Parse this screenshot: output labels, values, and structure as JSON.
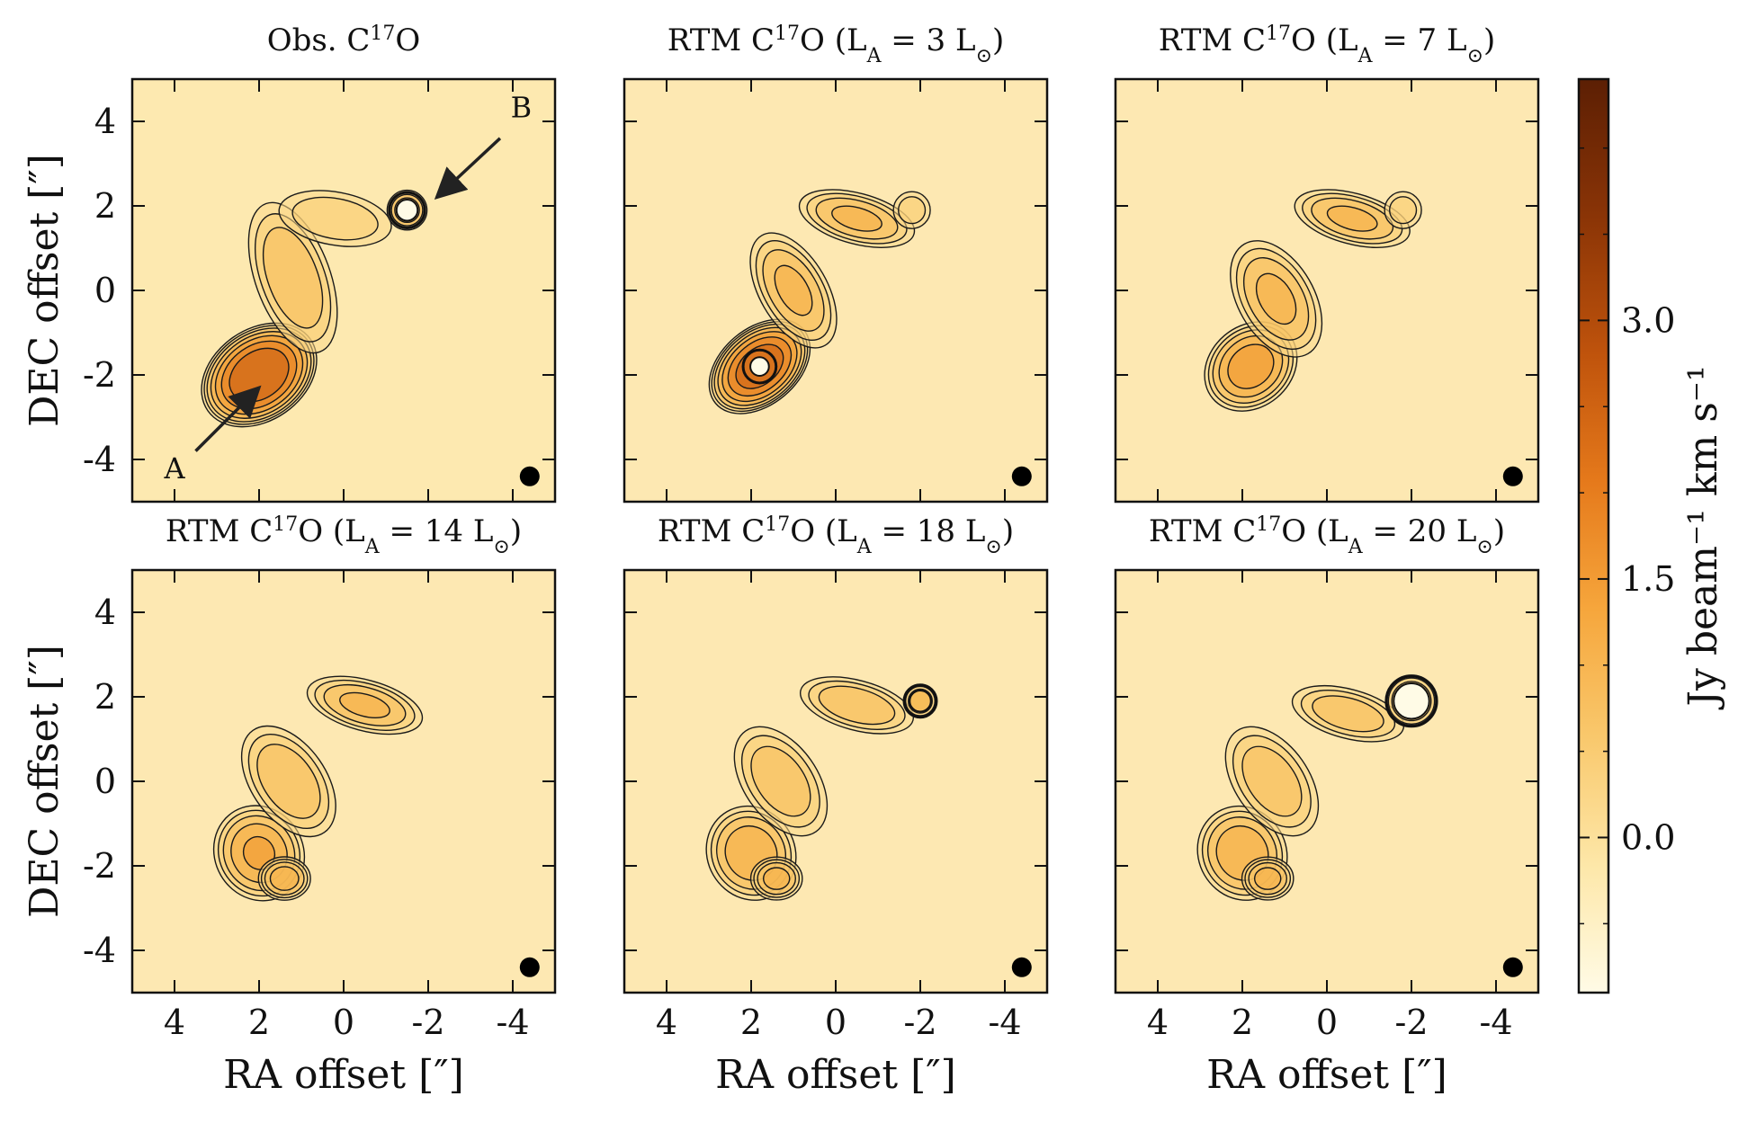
{
  "chart_data": {
    "type": "heatmap",
    "panels": [
      {
        "id": "obs",
        "title_pre": "Obs. C",
        "title_sup": "17",
        "title_post": "O",
        "annotations": [
          "A",
          "B"
        ]
      },
      {
        "id": "rtm3",
        "title_pre": "RTM C",
        "title_sup": "17",
        "title_post": "O (L",
        "la_sub": "A",
        "la_value": "= 3 L",
        "la_close": ")"
      },
      {
        "id": "rtm7",
        "title_pre": "RTM C",
        "title_sup": "17",
        "title_post": "O (L",
        "la_sub": "A",
        "la_value": "= 7 L",
        "la_close": ")"
      },
      {
        "id": "rtm14",
        "title_pre": "RTM C",
        "title_sup": "17",
        "title_post": "O (L",
        "la_sub": "A",
        "la_value": "= 14 L",
        "la_close": ")"
      },
      {
        "id": "rtm18",
        "title_pre": "RTM C",
        "title_sup": "17",
        "title_post": "O (L",
        "la_sub": "A",
        "la_value": "= 18 L",
        "la_close": ")"
      },
      {
        "id": "rtm20",
        "title_pre": "RTM C",
        "title_sup": "17",
        "title_post": "O (L",
        "la_sub": "A",
        "la_value": "= 20 L",
        "la_close": ")"
      }
    ],
    "x_label": "RA offset [″]",
    "y_label": "DEC offset [″]",
    "x_ticks": [
      "4",
      "2",
      "0",
      "-2",
      "-4"
    ],
    "y_ticks": [
      "4",
      "2",
      "0",
      "-2",
      "-4"
    ],
    "x_range": [
      5,
      -5
    ],
    "y_range": [
      -5,
      5
    ],
    "colorbar": {
      "label": "Jy beam⁻¹ km s⁻¹",
      "ticks": [
        "0.0",
        "1.5",
        "3.0"
      ],
      "range": [
        -0.9,
        4.4
      ],
      "colormap": [
        "#fffbe6",
        "#fde7a8",
        "#f9c86c",
        "#f6a63c",
        "#e5791b",
        "#bf530c",
        "#8a3406",
        "#5c1f04"
      ]
    },
    "beam_marker": "beam"
  }
}
